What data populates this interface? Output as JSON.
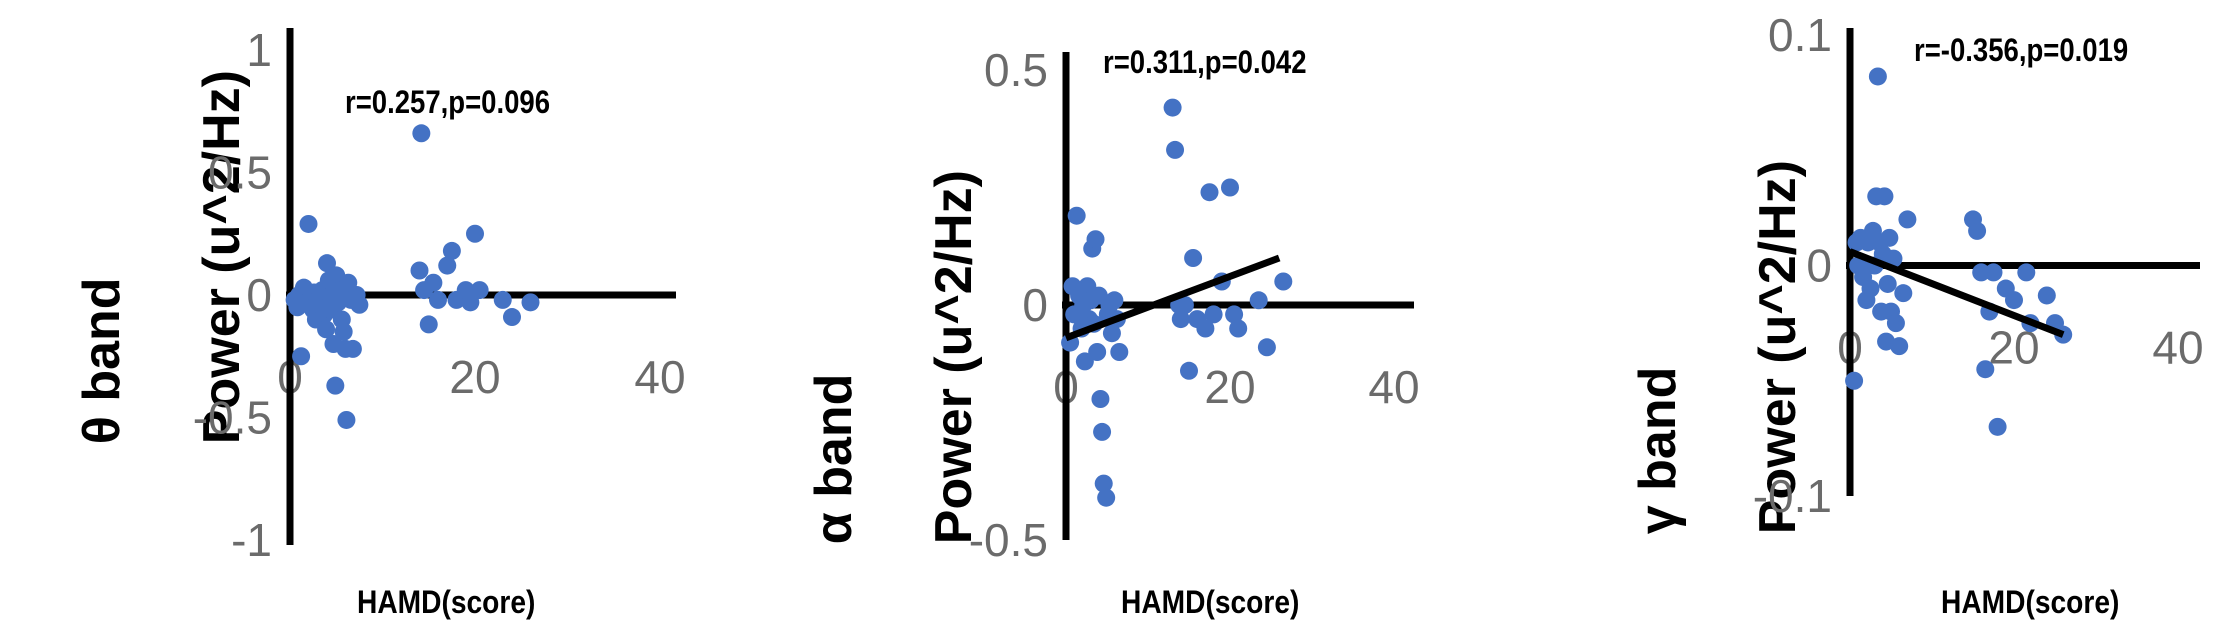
{
  "chart_data": [
    {
      "type": "scatter",
      "ylabel_band": "θ band",
      "ylabel_unit": "Power (u^2/Hz)",
      "xlabel": "HAMD(score)",
      "annotation": "r=0.257,p=0.096",
      "xlim": [
        0,
        40
      ],
      "ylim": [
        -1,
        1
      ],
      "xticks": [
        "0",
        "20",
        "40"
      ],
      "yticks": [
        "1",
        "0.5",
        "0",
        "-0.5",
        "-1"
      ],
      "point_color": "#4472c4",
      "trendline": {
        "x": [
          0,
          26
        ],
        "y": [
          0.0,
          0.0
        ]
      },
      "points": [
        {
          "x": 0.5,
          "y": -0.02
        },
        {
          "x": 0.8,
          "y": -0.05
        },
        {
          "x": 1.0,
          "y": 0.0
        },
        {
          "x": 1.2,
          "y": -0.25
        },
        {
          "x": 1.5,
          "y": 0.03
        },
        {
          "x": 1.8,
          "y": -0.03
        },
        {
          "x": 2.0,
          "y": 0.29
        },
        {
          "x": 2.3,
          "y": -0.04
        },
        {
          "x": 2.5,
          "y": -0.06
        },
        {
          "x": 2.6,
          "y": 0.01
        },
        {
          "x": 2.8,
          "y": -0.1
        },
        {
          "x": 3.0,
          "y": -0.02
        },
        {
          "x": 3.2,
          "y": -0.04
        },
        {
          "x": 3.3,
          "y": 0.0
        },
        {
          "x": 3.5,
          "y": 0.02
        },
        {
          "x": 3.7,
          "y": -0.08
        },
        {
          "x": 3.9,
          "y": -0.14
        },
        {
          "x": 4.0,
          "y": 0.13
        },
        {
          "x": 4.2,
          "y": 0.06
        },
        {
          "x": 4.4,
          "y": -0.06
        },
        {
          "x": 4.5,
          "y": -0.01
        },
        {
          "x": 4.7,
          "y": -0.2
        },
        {
          "x": 4.9,
          "y": -0.37
        },
        {
          "x": 5.0,
          "y": 0.08
        },
        {
          "x": 5.2,
          "y": -0.03
        },
        {
          "x": 5.4,
          "y": 0.02
        },
        {
          "x": 5.6,
          "y": -0.1
        },
        {
          "x": 5.8,
          "y": -0.15
        },
        {
          "x": 6.0,
          "y": -0.22
        },
        {
          "x": 6.1,
          "y": -0.51
        },
        {
          "x": 6.3,
          "y": 0.05
        },
        {
          "x": 6.6,
          "y": -0.02
        },
        {
          "x": 6.8,
          "y": -0.22
        },
        {
          "x": 7.2,
          "y": 0.0
        },
        {
          "x": 7.5,
          "y": -0.04
        },
        {
          "x": 14.0,
          "y": 0.1
        },
        {
          "x": 14.2,
          "y": 0.66
        },
        {
          "x": 14.5,
          "y": 0.02
        },
        {
          "x": 15.0,
          "y": -0.12
        },
        {
          "x": 15.5,
          "y": 0.05
        },
        {
          "x": 16.0,
          "y": -0.02
        },
        {
          "x": 17.0,
          "y": 0.12
        },
        {
          "x": 17.5,
          "y": 0.18
        },
        {
          "x": 18.0,
          "y": -0.02
        },
        {
          "x": 19.0,
          "y": 0.02
        },
        {
          "x": 19.5,
          "y": -0.03
        },
        {
          "x": 20.0,
          "y": 0.25
        },
        {
          "x": 20.5,
          "y": 0.02
        },
        {
          "x": 23.0,
          "y": -0.02
        },
        {
          "x": 24.0,
          "y": -0.09
        },
        {
          "x": 26.0,
          "y": -0.03
        }
      ]
    },
    {
      "type": "scatter",
      "ylabel_band": "α band",
      "ylabel_unit": "Power (u^2/Hz)",
      "xlabel": "HAMD(score)",
      "annotation": "r=0.311,p=0.042",
      "xlim": [
        0,
        40
      ],
      "ylim": [
        -0.5,
        0.5
      ],
      "xticks": [
        "0",
        "20",
        "40"
      ],
      "yticks": [
        "0.5",
        "0",
        "-0.5"
      ],
      "point_color": "#4472c4",
      "trendline": {
        "x": [
          0,
          26
        ],
        "y": [
          -0.07,
          0.1
        ]
      },
      "points": [
        {
          "x": 0.5,
          "y": -0.08
        },
        {
          "x": 0.8,
          "y": 0.04
        },
        {
          "x": 1.0,
          "y": -0.02
        },
        {
          "x": 1.3,
          "y": 0.19
        },
        {
          "x": 1.6,
          "y": 0.02
        },
        {
          "x": 1.9,
          "y": -0.05
        },
        {
          "x": 2.1,
          "y": 0.0
        },
        {
          "x": 2.3,
          "y": -0.12
        },
        {
          "x": 2.6,
          "y": 0.04
        },
        {
          "x": 2.8,
          "y": -0.03
        },
        {
          "x": 3.0,
          "y": 0.01
        },
        {
          "x": 3.2,
          "y": 0.12
        },
        {
          "x": 3.4,
          "y": -0.04
        },
        {
          "x": 3.6,
          "y": 0.14
        },
        {
          "x": 3.8,
          "y": -0.1
        },
        {
          "x": 4.0,
          "y": 0.02
        },
        {
          "x": 4.2,
          "y": -0.2
        },
        {
          "x": 4.4,
          "y": -0.27
        },
        {
          "x": 4.6,
          "y": -0.38
        },
        {
          "x": 4.9,
          "y": -0.41
        },
        {
          "x": 5.1,
          "y": -0.02
        },
        {
          "x": 5.3,
          "y": 0.0
        },
        {
          "x": 5.6,
          "y": -0.06
        },
        {
          "x": 5.9,
          "y": 0.01
        },
        {
          "x": 6.2,
          "y": -0.03
        },
        {
          "x": 6.5,
          "y": -0.1
        },
        {
          "x": 13.0,
          "y": 0.42
        },
        {
          "x": 13.3,
          "y": 0.33
        },
        {
          "x": 13.8,
          "y": 0.0
        },
        {
          "x": 14.0,
          "y": -0.03
        },
        {
          "x": 14.5,
          "y": 0.0
        },
        {
          "x": 15.0,
          "y": -0.14
        },
        {
          "x": 15.5,
          "y": 0.1
        },
        {
          "x": 16.0,
          "y": -0.03
        },
        {
          "x": 17.0,
          "y": -0.05
        },
        {
          "x": 17.5,
          "y": 0.24
        },
        {
          "x": 18.0,
          "y": -0.02
        },
        {
          "x": 19.0,
          "y": 0.05
        },
        {
          "x": 20.0,
          "y": 0.25
        },
        {
          "x": 20.5,
          "y": -0.02
        },
        {
          "x": 21.0,
          "y": -0.05
        },
        {
          "x": 23.5,
          "y": 0.01
        },
        {
          "x": 24.5,
          "y": -0.09
        },
        {
          "x": 26.5,
          "y": 0.05
        }
      ]
    },
    {
      "type": "scatter",
      "ylabel_band": "γ band",
      "ylabel_unit": "Power (u^2/Hz)",
      "xlabel": "HAMD(score)",
      "annotation": "r=-0.356,p=0.019",
      "xlim": [
        0,
        40
      ],
      "ylim": [
        -0.1,
        0.1
      ],
      "xticks": [
        "0",
        "20",
        "40"
      ],
      "yticks": [
        "0.1",
        "0",
        "-0.1"
      ],
      "point_color": "#4472c4",
      "trendline": {
        "x": [
          0,
          26
        ],
        "y": [
          0.006,
          -0.03
        ]
      },
      "points": [
        {
          "x": 0.5,
          "y": -0.05
        },
        {
          "x": 0.8,
          "y": 0.01
        },
        {
          "x": 1.0,
          "y": 0.0
        },
        {
          "x": 1.3,
          "y": 0.012
        },
        {
          "x": 1.6,
          "y": -0.005
        },
        {
          "x": 2.0,
          "y": -0.015
        },
        {
          "x": 2.2,
          "y": 0.01
        },
        {
          "x": 2.5,
          "y": -0.01
        },
        {
          "x": 2.8,
          "y": 0.015
        },
        {
          "x": 3.0,
          "y": 0.0
        },
        {
          "x": 3.2,
          "y": 0.03
        },
        {
          "x": 3.4,
          "y": 0.082
        },
        {
          "x": 3.6,
          "y": 0.01
        },
        {
          "x": 3.8,
          "y": -0.02
        },
        {
          "x": 4.0,
          "y": 0.005
        },
        {
          "x": 4.2,
          "y": 0.03
        },
        {
          "x": 4.4,
          "y": -0.033
        },
        {
          "x": 4.6,
          "y": -0.008
        },
        {
          "x": 4.8,
          "y": 0.012
        },
        {
          "x": 5.0,
          "y": -0.02
        },
        {
          "x": 5.3,
          "y": 0.003
        },
        {
          "x": 5.6,
          "y": -0.025
        },
        {
          "x": 6.0,
          "y": -0.035
        },
        {
          "x": 6.5,
          "y": -0.012
        },
        {
          "x": 7.0,
          "y": 0.02
        },
        {
          "x": 15.0,
          "y": 0.02
        },
        {
          "x": 15.5,
          "y": 0.015
        },
        {
          "x": 16.0,
          "y": -0.003
        },
        {
          "x": 16.5,
          "y": -0.045
        },
        {
          "x": 17.0,
          "y": -0.02
        },
        {
          "x": 17.5,
          "y": -0.003
        },
        {
          "x": 18.0,
          "y": -0.07
        },
        {
          "x": 19.0,
          "y": -0.01
        },
        {
          "x": 20.0,
          "y": -0.015
        },
        {
          "x": 21.5,
          "y": -0.003
        },
        {
          "x": 22.0,
          "y": -0.025
        },
        {
          "x": 24.0,
          "y": -0.013
        },
        {
          "x": 25.0,
          "y": -0.025
        },
        {
          "x": 26.0,
          "y": -0.03
        }
      ]
    }
  ]
}
